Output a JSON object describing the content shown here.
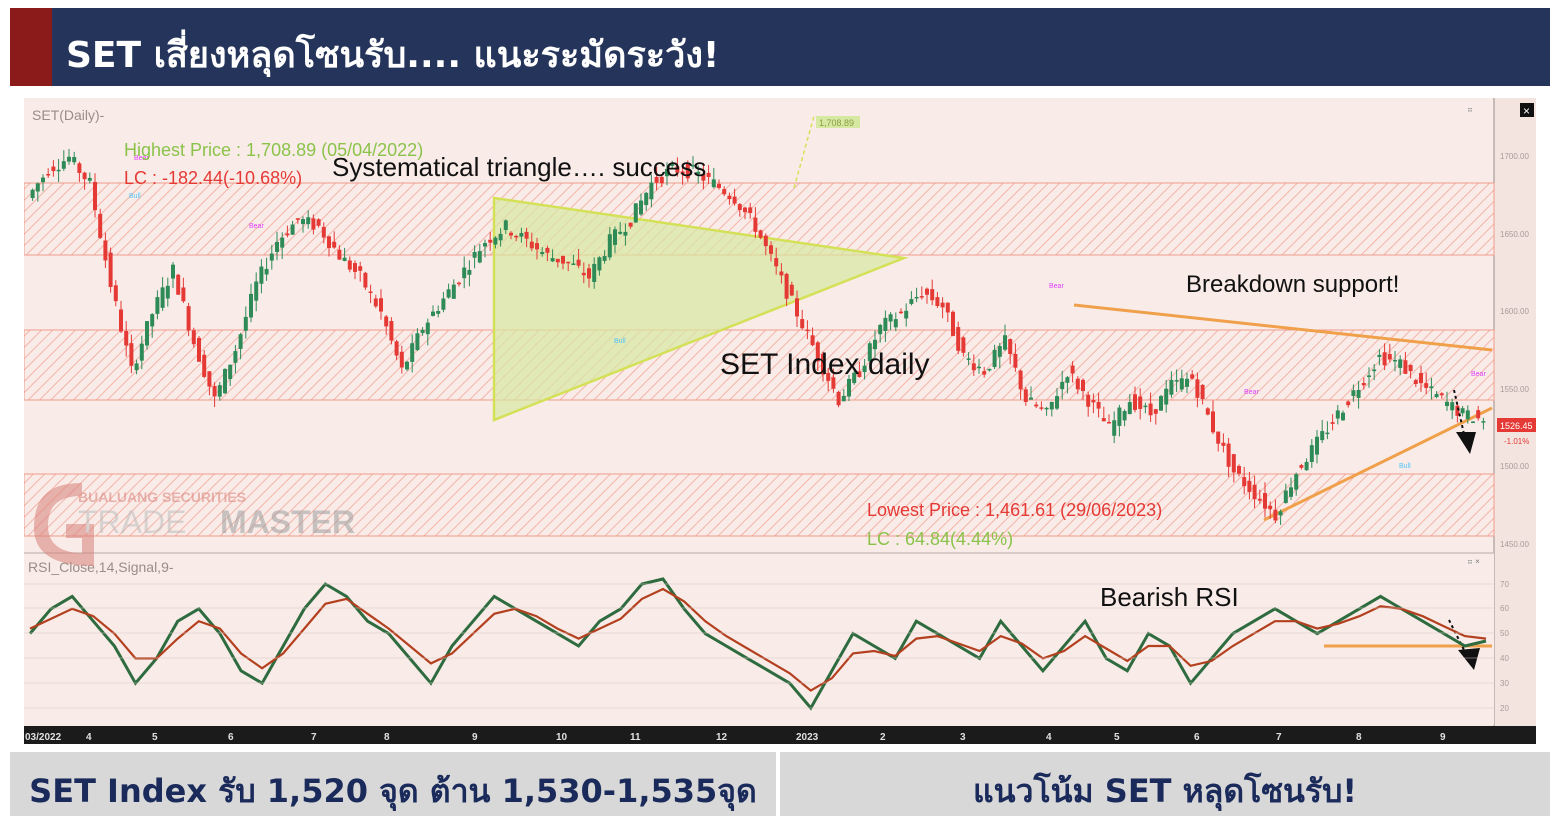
{
  "header": {
    "title": "SET เสี่ยงหลุดโซนรับ.... แนะระมัดระวัง!"
  },
  "footer": {
    "left": "SET Index รับ 1,520 จุด ต้าน 1,530-1,535จุด",
    "right": "แนวโน้ม SET หลุดโซนรับ!"
  },
  "chart_data": {
    "type": "line",
    "series": [
      {
        "name": "SET(Daily)",
        "values": [
          1680,
          1700,
          1708,
          1690,
          1620,
          1560,
          1600,
          1630,
          1580,
          1540,
          1575,
          1620,
          1650,
          1665,
          1660,
          1640,
          1625,
          1600,
          1560,
          1590,
          1610,
          1630,
          1650,
          1660,
          1650,
          1640,
          1635,
          1625,
          1650,
          1665,
          1690,
          1700,
          1698,
          1690,
          1680,
          1660,
          1630,
          1600,
          1570,
          1540,
          1560,
          1590,
          1600,
          1615,
          1605,
          1570,
          1560,
          1580,
          1540,
          1530,
          1560,
          1540,
          1520,
          1540,
          1530,
          1550,
          1555,
          1520,
          1490,
          1475,
          1460,
          1490,
          1510,
          1530,
          1550,
          1570,
          1565,
          1550,
          1540,
          1530,
          1526
        ]
      }
    ],
    "y_axis_ticks": [
      "1700.00",
      "1650.00",
      "1600.00",
      "1550.00",
      "1500.00",
      "1450.00"
    ],
    "last_price": "1526.45",
    "last_change": "-1.01%",
    "x_ticks": [
      "03/2022",
      "4",
      "5",
      "6",
      "7",
      "8",
      "9",
      "10",
      "11",
      "12",
      "2023",
      "2",
      "3",
      "4",
      "5",
      "6",
      "7",
      "8",
      "9"
    ],
    "annotations": {
      "chart_label": "SET(Daily)-",
      "highest": "Highest Price : 1,708.89 (05/04/2022)",
      "lc_high": "LC : -182.44(-10.68%)",
      "triangle": "Systematical triangle…. success",
      "breakdown": "Breakdown support!",
      "set_daily": "SET Index daily",
      "lowest": "Lowest Price : 1,461.61 (29/06/2023)",
      "lc_low": "LC : 64.84(4.44%)",
      "bearish_rsi": "Bearish RSI",
      "watermark_top": "BUALUANG SECURITIES",
      "watermark_trade": "TRADE",
      "watermark_master": "MASTER",
      "tag_high": "1,708.89"
    },
    "signal_labels": [
      "Bear",
      "Bull"
    ],
    "rsi": {
      "label": "RSI_Close,14,Signal,9-",
      "ticks": [
        "70",
        "60",
        "50",
        "40",
        "30",
        "20"
      ],
      "rsi_values": [
        50,
        60,
        65,
        55,
        45,
        30,
        40,
        55,
        60,
        50,
        35,
        30,
        45,
        60,
        70,
        65,
        55,
        50,
        40,
        30,
        45,
        55,
        65,
        60,
        55,
        50,
        45,
        55,
        60,
        70,
        72,
        60,
        50,
        45,
        40,
        35,
        30,
        20,
        35,
        50,
        45,
        40,
        55,
        50,
        45,
        40,
        55,
        45,
        35,
        45,
        55,
        40,
        35,
        50,
        45,
        30,
        40,
        50,
        55,
        60,
        55,
        50,
        55,
        60,
        65,
        60,
        55,
        50,
        45,
        47
      ],
      "signal_values": [
        52,
        56,
        60,
        57,
        50,
        40,
        40,
        48,
        55,
        52,
        42,
        36,
        42,
        52,
        62,
        64,
        58,
        52,
        45,
        38,
        42,
        50,
        58,
        60,
        57,
        52,
        48,
        52,
        56,
        64,
        68,
        63,
        55,
        49,
        44,
        39,
        34,
        27,
        32,
        42,
        43,
        41,
        48,
        49,
        46,
        43,
        49,
        46,
        40,
        43,
        49,
        44,
        39,
        45,
        45,
        37,
        39,
        45,
        50,
        55,
        55,
        52,
        54,
        57,
        61,
        60,
        57,
        53,
        49,
        48
      ]
    },
    "colors": {
      "up": "#2e8b57",
      "down": "#e53935",
      "triangle": "#d4e157",
      "trend": "#f0a04b",
      "rsi": "#2e6b3f",
      "signal": "#b3401f"
    }
  }
}
